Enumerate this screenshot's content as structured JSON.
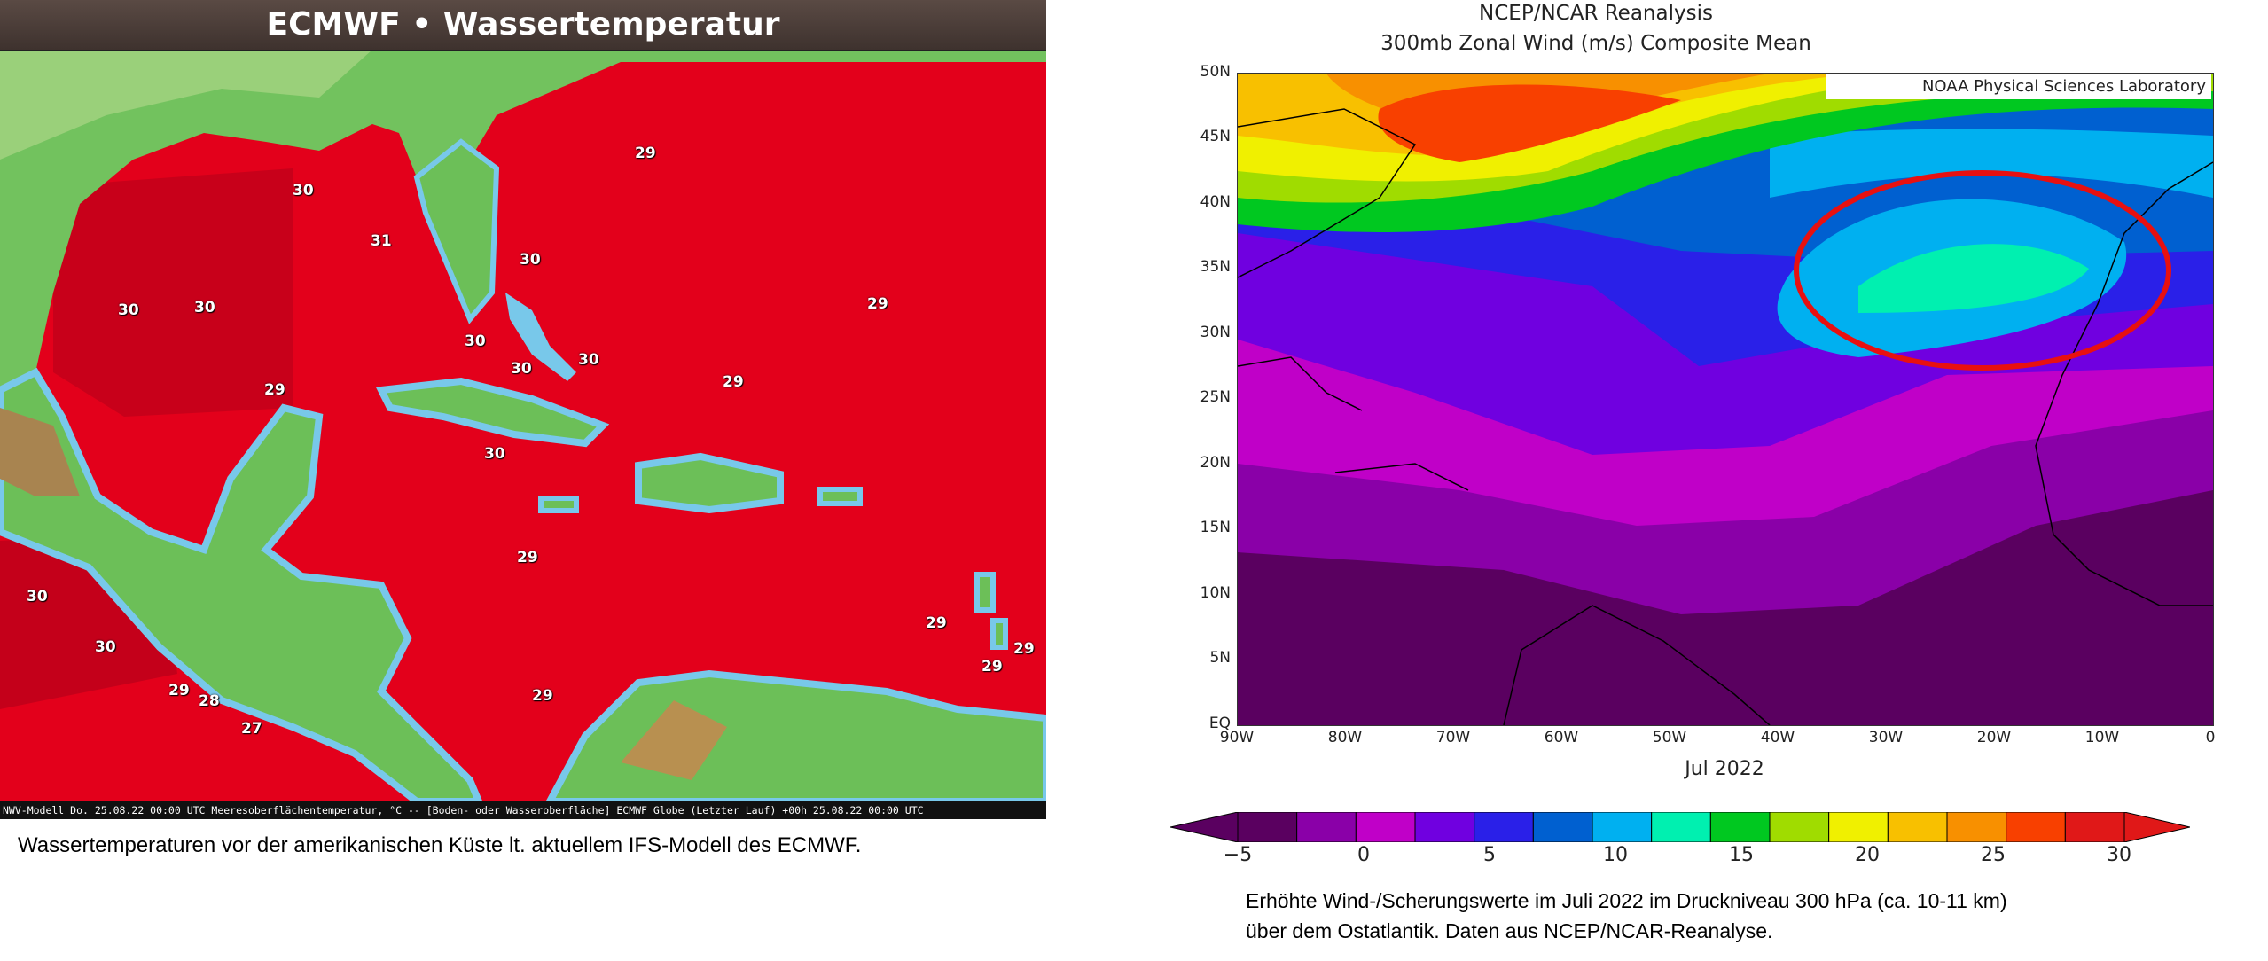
{
  "left_panel": {
    "title": "ECMWF • Wassertemperatur",
    "footer": "NWV-Modell Do. 25.08.22 00:00 UTC Meeresoberflächentemperatur, °C -- [Boden- oder Wasseroberfläche] ECMWF Globe (Letzter Lauf) +00h 25.08.22 00:00 UTC",
    "caption": "Wassertemperaturen vor der amerikanischen Küste lt. aktuellem IFS-Modell des ECMWF.",
    "temperature_labels": [
      "29",
      "30",
      "31",
      "30",
      "30",
      "30",
      "29",
      "30",
      "30",
      "30",
      "29",
      "29",
      "30",
      "29",
      "30",
      "30",
      "29",
      "28",
      "27",
      "29",
      "29",
      "29",
      "29"
    ],
    "colors": {
      "sea": "#e3001b",
      "land": "#5fb860",
      "coast": "#78c8ea"
    }
  },
  "right_panel": {
    "title_line1": "NCEP/NCAR Reanalysis",
    "title_line2": "300mb Zonal Wind (m/s) Composite Mean",
    "credit": "NOAA Physical Sciences Laboratory",
    "month": "Jul 2022",
    "y_ticks": [
      "50N",
      "45N",
      "40N",
      "35N",
      "30N",
      "25N",
      "20N",
      "15N",
      "10N",
      "5N",
      "EQ"
    ],
    "x_ticks": [
      "90W",
      "80W",
      "70W",
      "60W",
      "50W",
      "40W",
      "30W",
      "20W",
      "10W",
      "0"
    ],
    "colorbar_ticks": [
      "−5",
      "0",
      "5",
      "10",
      "15",
      "20",
      "25",
      "30"
    ],
    "colorbar_colors": [
      "#5a0060",
      "#8a00a8",
      "#c000c8",
      "#7000e0",
      "#2a20e8",
      "#0060d0",
      "#00b0f0",
      "#00f0b0",
      "#00c820",
      "#a0dc00",
      "#f0f000",
      "#f8c000",
      "#f89000",
      "#f84000",
      "#e01818"
    ],
    "caption_line1": "Erhöhte Wind-/Scherungswerte im Juli 2022 im Druckniveau 300 hPa (ca. 10-11 km)",
    "caption_line2": "über dem Ostatlantik. Daten aus NCEP/NCAR-Reanalyse.",
    "highlight_color": "#e81010"
  }
}
